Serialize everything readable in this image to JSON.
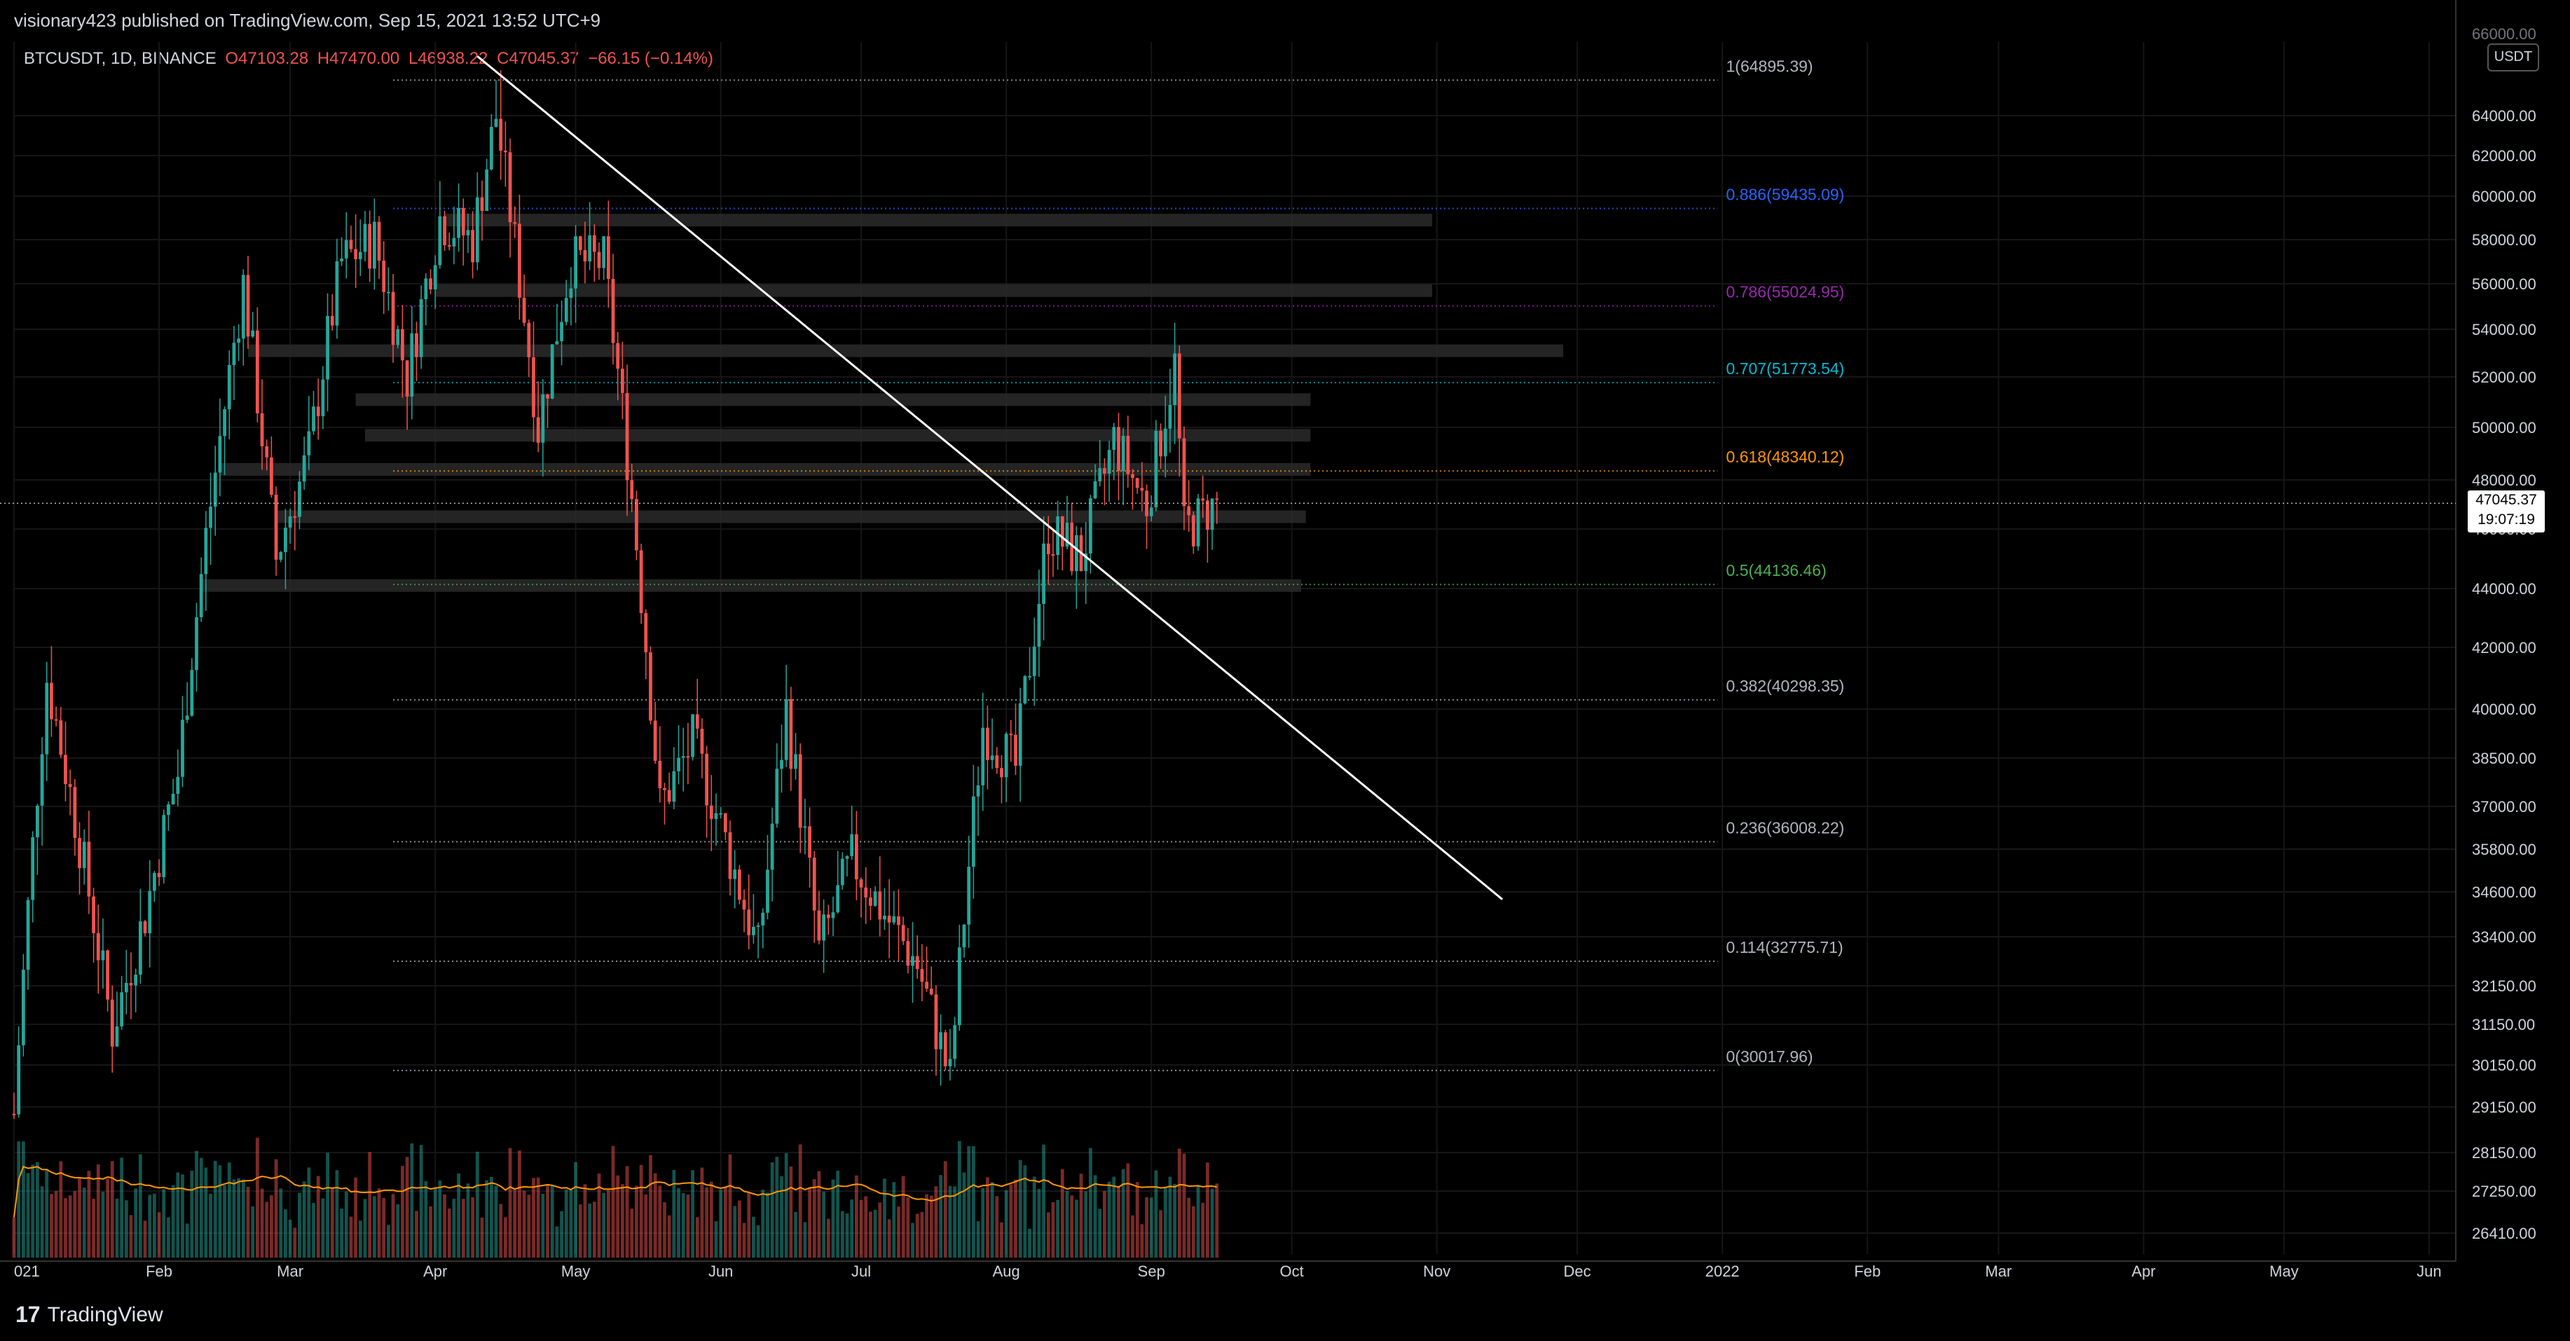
{
  "header": {
    "published": "visionary423 published on TradingView.com, Sep 15, 2021 13:52 UTC+9"
  },
  "symbol": {
    "name": "BTCUSDT, 1D, BINANCE",
    "open": "O47103.28",
    "high": "H47470.00",
    "low": "L46938.22",
    "close": "C47045.37",
    "change": "−66.15 (−0.14%)"
  },
  "axis": {
    "currency_badge": "USDT",
    "top_clip_label": "66000.00",
    "price_labels": [
      "64000.00",
      "62000.00",
      "60000.00",
      "58000.00",
      "56000.00",
      "54000.00",
      "52000.00",
      "50000.00",
      "48000.00",
      "46000.00",
      "44000.00",
      "42000.00",
      "40000.00",
      "38500.00",
      "37000.00",
      "35800.00",
      "34600.00",
      "33400.00",
      "32150.00",
      "31150.00",
      "30150.00",
      "29150.00",
      "28150.00",
      "27250.00",
      "26410.00"
    ],
    "time_labels": [
      "021",
      "Feb",
      "Mar",
      "Apr",
      "May",
      "Jun",
      "Jul",
      "Aug",
      "Sep",
      "Oct",
      "Nov",
      "Dec",
      "2022",
      "Feb",
      "Mar",
      "Apr",
      "May",
      "Jun"
    ]
  },
  "current_price": {
    "value": "47045.37",
    "countdown": "19:07:19"
  },
  "fib_levels": [
    {
      "label": "1(64895.39)",
      "color": "#b2b5be"
    },
    {
      "label": "0.886(59435.09)",
      "color": "#2962ff"
    },
    {
      "label": "0.786(55024.95)",
      "color": "#9c27b0"
    },
    {
      "label": "0.707(51773.54)",
      "color": "#00bcd4"
    },
    {
      "label": "0.618(48340.12)",
      "color": "#ff9800"
    },
    {
      "label": "0.5(44136.46)",
      "color": "#4caf50"
    },
    {
      "label": "0.382(40298.35)",
      "color": "#b2b5be"
    },
    {
      "label": "0.236(36008.22)",
      "color": "#b2b5be"
    },
    {
      "label": "0.114(32775.71)",
      "color": "#b2b5be"
    },
    {
      "label": "0(30017.96)",
      "color": "#b2b5be"
    }
  ],
  "chart_data": {
    "type": "candlestick",
    "symbol": "BTCUSDT",
    "timeframe": "1D",
    "exchange": "BINANCE",
    "x_range": [
      "2021-01",
      "2022-06"
    ],
    "y_range": [
      26000,
      66000
    ],
    "fibonacci_retracement": [
      {
        "ratio": 1,
        "price": 64895.39
      },
      {
        "ratio": 0.886,
        "price": 59435.09
      },
      {
        "ratio": 0.786,
        "price": 55024.95
      },
      {
        "ratio": 0.707,
        "price": 51773.54
      },
      {
        "ratio": 0.618,
        "price": 48340.12
      },
      {
        "ratio": 0.5,
        "price": 44136.46
      },
      {
        "ratio": 0.382,
        "price": 40298.35
      },
      {
        "ratio": 0.236,
        "price": 36008.22
      },
      {
        "ratio": 0.114,
        "price": 32775.71
      },
      {
        "ratio": 0,
        "price": 30017.96
      }
    ],
    "trendline": {
      "from": {
        "date": "2021-04-10",
        "price": 65500
      },
      "to": {
        "date": "2021-11-15",
        "price": 34400
      }
    },
    "support_resistance_zones": [
      58900,
      55700,
      53100,
      51100,
      49700,
      48400,
      46500,
      44100
    ],
    "price_path": [
      [
        "2021-01-01",
        29000
      ],
      [
        "2021-01-08",
        41000
      ],
      [
        "2021-01-15",
        36000
      ],
      [
        "2021-01-22",
        31000
      ],
      [
        "2021-01-29",
        34000
      ],
      [
        "2021-02-05",
        38000
      ],
      [
        "2021-02-12",
        47000
      ],
      [
        "2021-02-19",
        56000
      ],
      [
        "2021-02-26",
        45000
      ],
      [
        "2021-03-05",
        49000
      ],
      [
        "2021-03-12",
        57000
      ],
      [
        "2021-03-19",
        58000
      ],
      [
        "2021-03-26",
        52000
      ],
      [
        "2021-04-02",
        59000
      ],
      [
        "2021-04-09",
        58000
      ],
      [
        "2021-04-14",
        64000
      ],
      [
        "2021-04-23",
        50000
      ],
      [
        "2021-04-30",
        57000
      ],
      [
        "2021-05-07",
        57000
      ],
      [
        "2021-05-12",
        49000
      ],
      [
        "2021-05-19",
        37000
      ],
      [
        "2021-05-26",
        39000
      ],
      [
        "2021-06-02",
        36000
      ],
      [
        "2021-06-09",
        33000
      ],
      [
        "2021-06-15",
        40000
      ],
      [
        "2021-06-22",
        33000
      ],
      [
        "2021-06-29",
        35500
      ],
      [
        "2021-07-06",
        34000
      ],
      [
        "2021-07-13",
        32700
      ],
      [
        "2021-07-20",
        29800
      ],
      [
        "2021-07-27",
        39500
      ],
      [
        "2021-08-03",
        38200
      ],
      [
        "2021-08-10",
        46000
      ],
      [
        "2021-08-17",
        45000
      ],
      [
        "2021-08-24",
        49500
      ],
      [
        "2021-08-31",
        47000
      ],
      [
        "2021-09-06",
        52500
      ],
      [
        "2021-09-08",
        46000
      ],
      [
        "2021-09-15",
        47045.37
      ]
    ],
    "last_close": 47045.37,
    "change": -66.15,
    "change_pct": -0.14
  },
  "footer": {
    "logo_glyph": "17",
    "brand": "TradingView"
  }
}
